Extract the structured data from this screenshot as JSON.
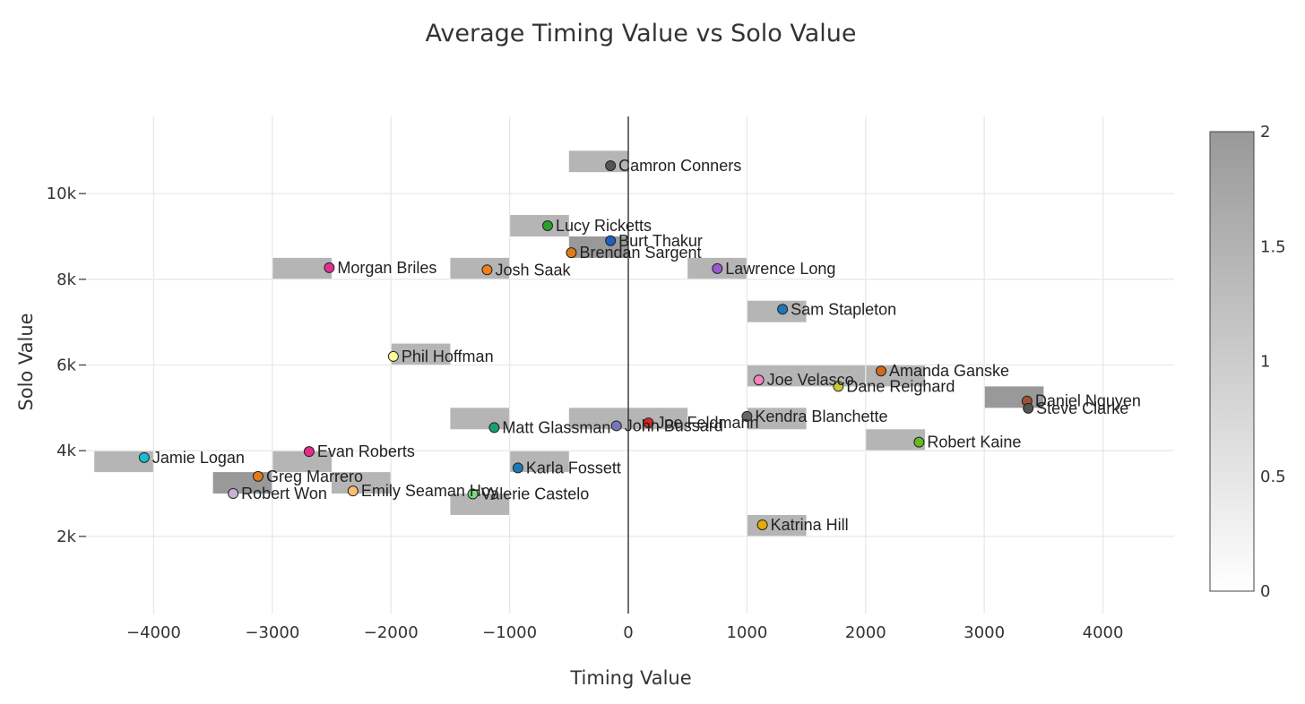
{
  "chart_data": {
    "type": "scatter",
    "title": "Average Timing Value vs Solo Value",
    "xlabel": "Timing Value",
    "ylabel": "Solo Value",
    "xlim": [
      -4600,
      4600
    ],
    "ylim": [
      200,
      11800
    ],
    "x_ticks": [
      -4000,
      -3000,
      -2000,
      -1000,
      0,
      1000,
      2000,
      3000,
      4000
    ],
    "x_tick_labels": [
      "−4000",
      "−3000",
      "−2000",
      "−1000",
      "0",
      "1000",
      "2000",
      "3000",
      "4000"
    ],
    "y_ticks": [
      2000,
      4000,
      6000,
      8000,
      10000
    ],
    "y_tick_labels": [
      "2k",
      "4k",
      "6k",
      "8k",
      "10k"
    ],
    "grid": true,
    "zero_line_x": 0,
    "heatmap": {
      "description": "2D histogram density (count per bin) behind points",
      "x_bin_size": 500,
      "y_bin_size": 500,
      "colorscale": [
        "#ffffff",
        "#999999"
      ],
      "zmin": 0,
      "zmax": 2,
      "colorbar_ticks": [
        0,
        0.5,
        1,
        1.5,
        2
      ],
      "colorbar_tick_labels": [
        "0",
        "0.5",
        "1",
        "1.5",
        "2"
      ],
      "cells": [
        {
          "x": -500,
          "y": 10500,
          "count": 1
        },
        {
          "x": -1000,
          "y": 9000,
          "count": 1
        },
        {
          "x": -500,
          "y": 8500,
          "count": 2
        },
        {
          "x": -3000,
          "y": 8000,
          "count": 1
        },
        {
          "x": -1500,
          "y": 8000,
          "count": 1
        },
        {
          "x": 500,
          "y": 8000,
          "count": 1
        },
        {
          "x": 1000,
          "y": 7000,
          "count": 1
        },
        {
          "x": -2000,
          "y": 6000,
          "count": 1
        },
        {
          "x": 1000,
          "y": 5500,
          "count": 1
        },
        {
          "x": 1500,
          "y": 5500,
          "count": 1
        },
        {
          "x": 2000,
          "y": 5500,
          "count": 1
        },
        {
          "x": 3000,
          "y": 5000,
          "count": 2
        },
        {
          "x": -1500,
          "y": 4500,
          "count": 1
        },
        {
          "x": -500,
          "y": 4500,
          "count": 1
        },
        {
          "x": 0,
          "y": 4500,
          "count": 1
        },
        {
          "x": 1000,
          "y": 4500,
          "count": 1
        },
        {
          "x": 2000,
          "y": 4000,
          "count": 1
        },
        {
          "x": -4500,
          "y": 3500,
          "count": 1
        },
        {
          "x": -3000,
          "y": 3500,
          "count": 1
        },
        {
          "x": -1000,
          "y": 3500,
          "count": 1
        },
        {
          "x": -3500,
          "y": 3000,
          "count": 2
        },
        {
          "x": -2500,
          "y": 3000,
          "count": 1
        },
        {
          "x": -1500,
          "y": 2500,
          "count": 1
        },
        {
          "x": 1000,
          "y": 2000,
          "count": 1
        }
      ]
    },
    "points": [
      {
        "name": "Camron Conners",
        "x": -150,
        "y": 10650,
        "color": "#555555"
      },
      {
        "name": "Lucy Ricketts",
        "x": -680,
        "y": 9250,
        "color": "#2ca02c"
      },
      {
        "name": "Burt Thakur",
        "x": -150,
        "y": 8900,
        "color": "#1f5fbf"
      },
      {
        "name": "Brendan Sargent",
        "x": -480,
        "y": 8620,
        "color": "#e07b1a"
      },
      {
        "name": "Morgan Briles",
        "x": -2520,
        "y": 8270,
        "color": "#e0338f"
      },
      {
        "name": "Josh Saak",
        "x": -1190,
        "y": 8220,
        "color": "#f07f1f"
      },
      {
        "name": "Lawrence Long",
        "x": 750,
        "y": 8250,
        "color": "#9b59d0"
      },
      {
        "name": "Sam Stapleton",
        "x": 1300,
        "y": 7300,
        "color": "#1f77b4"
      },
      {
        "name": "Phil Hoffman",
        "x": -1980,
        "y": 6200,
        "color": "#ffff99"
      },
      {
        "name": "Joe Velasco",
        "x": 1100,
        "y": 5650,
        "color": "#f781bf"
      },
      {
        "name": "Amanda Ganske",
        "x": 2130,
        "y": 5860,
        "color": "#d2691e"
      },
      {
        "name": "Dane Reighard",
        "x": 1770,
        "y": 5500,
        "color": "#c8c832"
      },
      {
        "name": "Daniel Nguyen",
        "x": 3360,
        "y": 5160,
        "color": "#a0522d"
      },
      {
        "name": "Steve Clarke",
        "x": 3370,
        "y": 4990,
        "color": "#555555"
      },
      {
        "name": "Kendra Blanchette",
        "x": 1000,
        "y": 4800,
        "color": "#666666"
      },
      {
        "name": "Joe Feldmann",
        "x": 170,
        "y": 4650,
        "color": "#d62728"
      },
      {
        "name": "John Bussard",
        "x": -100,
        "y": 4580,
        "color": "#7777bb"
      },
      {
        "name": "Matt Glassman",
        "x": -1130,
        "y": 4540,
        "color": "#1b9e77"
      },
      {
        "name": "Robert Kaine",
        "x": 2450,
        "y": 4200,
        "color": "#66bb22"
      },
      {
        "name": "Evan Roberts",
        "x": -2690,
        "y": 3980,
        "color": "#e7298a"
      },
      {
        "name": "Jamie Logan",
        "x": -4080,
        "y": 3840,
        "color": "#17becf"
      },
      {
        "name": "Karla Fossett",
        "x": -930,
        "y": 3600,
        "color": "#1f77b4"
      },
      {
        "name": "Greg Marrero",
        "x": -3120,
        "y": 3400,
        "color": "#e07b1a"
      },
      {
        "name": "Emily Seaman Hoy",
        "x": -2320,
        "y": 3060,
        "color": "#fdbf6f"
      },
      {
        "name": "Robert Won",
        "x": -3330,
        "y": 3000,
        "color": "#cab2d6"
      },
      {
        "name": "Valerie Castelo",
        "x": -1310,
        "y": 2990,
        "color": "#77dd77"
      },
      {
        "name": "Katrina Hill",
        "x": 1130,
        "y": 2270,
        "color": "#e6ab02"
      }
    ]
  }
}
